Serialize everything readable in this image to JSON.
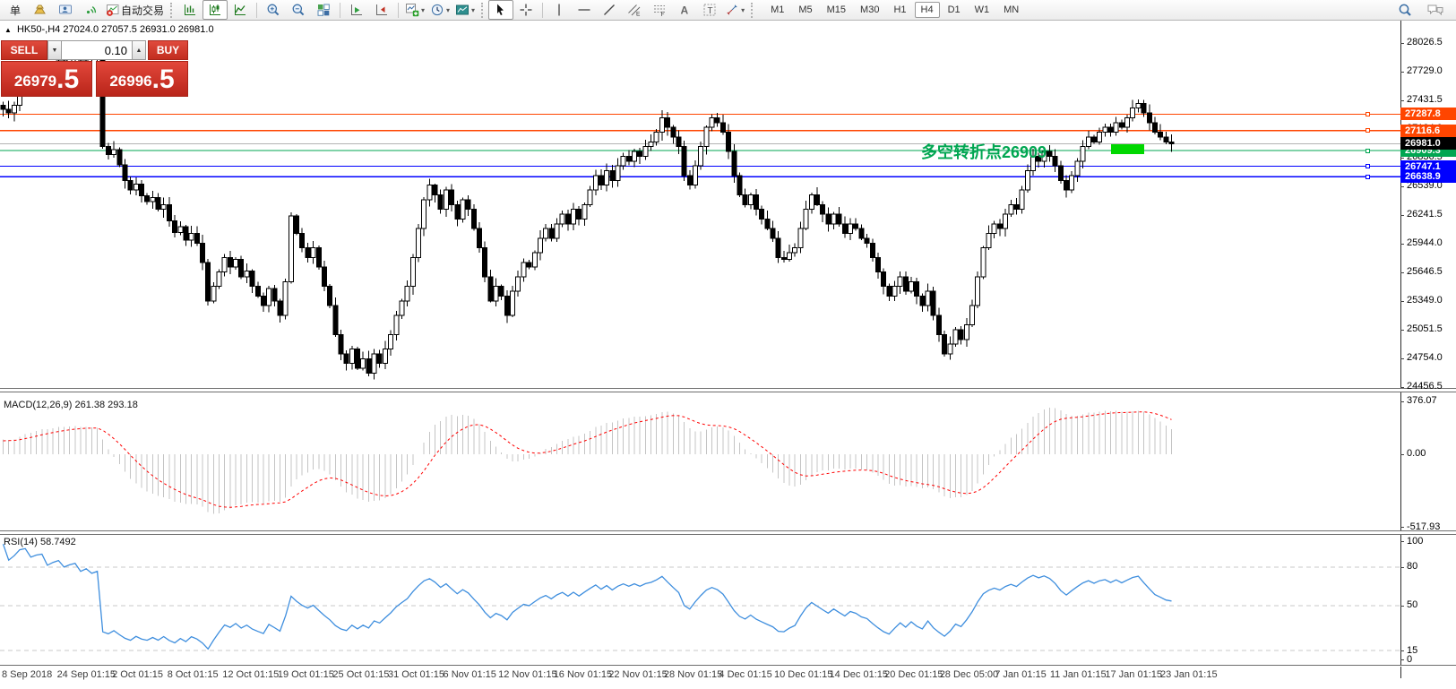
{
  "toolbar": {
    "new_order_label": "单",
    "autotrading_label": "自动交易",
    "timeframes": [
      "M1",
      "M5",
      "M15",
      "M30",
      "H1",
      "H4",
      "D1",
      "W1",
      "MN"
    ],
    "active_timeframe": "H4"
  },
  "chart_header": {
    "symbol_title": "HK50-,H4",
    "ohlc": "27024.0 27057.5 26931.0 26981.0"
  },
  "trade_panel": {
    "sell_label": "SELL",
    "buy_label": "BUY",
    "volume": "0.10",
    "sell_price_main": "26979",
    "sell_price_frac": ".5",
    "buy_price_main": "26996",
    "buy_price_frac": ".5"
  },
  "annotation": {
    "text": "多空转折点26909",
    "color": "#00a651"
  },
  "green_box": {
    "price_top": 26975,
    "price_bottom": 26872,
    "x": 1240,
    "width": 37,
    "color": "#00d800"
  },
  "current_price": {
    "value": 26981.0,
    "label": "26981.0",
    "line_color": "#b4b4b4",
    "label_bg": "#000000"
  },
  "hlines": [
    {
      "price": 27287.8,
      "label": "27287.8",
      "color": "#ff4500"
    },
    {
      "price": 27116.6,
      "label": "27116.6",
      "color": "#ff4500"
    },
    {
      "price": 26909.3,
      "label": "26909.3",
      "color": "#00a651"
    },
    {
      "price": 26747.1,
      "label": "26747.1",
      "color": "#0000ff"
    },
    {
      "price": 26638.9,
      "label": "26638.9",
      "color": "#0000ff"
    }
  ],
  "dates": [
    "8 Sep 2018",
    "24 Sep 01:15",
    "2 Oct 01:15",
    "8 Oct 01:15",
    "12 Oct 01:15",
    "19 Oct 01:15",
    "25 Oct 01:15",
    "31 Oct 01:15",
    "6 Nov 01:15",
    "12 Nov 01:15",
    "16 Nov 01:15",
    "22 Nov 01:15",
    "28 Nov 01:15",
    "4 Dec 01:15",
    "10 Dec 01:15",
    "14 Dec 01:15",
    "20 Dec 01:15",
    "28 Dec 05:00",
    "7 Jan 01:15",
    "11 Jan 01:15",
    "17 Jan 01:15",
    "23 Jan 01:15"
  ],
  "chart_data": [
    {
      "pane": "price",
      "type": "candlestick",
      "symbol": "HK50-",
      "period": "H4",
      "ylim": [
        24446,
        28268
      ],
      "ticks": [
        28026.5,
        27729.0,
        27431.5,
        27134.0,
        26836.5,
        26539.0,
        26241.5,
        25944.0,
        25646.5,
        25349.0,
        25051.5,
        24754.0,
        24456.5
      ],
      "preroll_start": 26800,
      "preroll_bars": 30,
      "closes": [
        27340,
        27300,
        27380,
        27600,
        27680,
        27640,
        27720,
        27760,
        27700,
        27780,
        27840,
        27800,
        27860,
        27900,
        27850,
        27910,
        27880,
        27920,
        26950,
        26870,
        26920,
        26760,
        26600,
        26500,
        26560,
        26440,
        26380,
        26420,
        26300,
        26350,
        26180,
        26060,
        26120,
        25980,
        26050,
        25950,
        25750,
        25350,
        25500,
        25650,
        25800,
        25700,
        25780,
        25600,
        25660,
        25500,
        25400,
        25300,
        25480,
        25350,
        25200,
        25550,
        26230,
        26050,
        25900,
        25800,
        25900,
        25700,
        25500,
        25300,
        25000,
        24800,
        24700,
        24850,
        24650,
        24750,
        24600,
        24800,
        24700,
        24850,
        25000,
        25200,
        25350,
        25500,
        25800,
        26100,
        26400,
        26550,
        26450,
        26300,
        26500,
        26350,
        26200,
        26400,
        26300,
        26100,
        25900,
        25600,
        25350,
        25500,
        25400,
        25200,
        25450,
        25600,
        25750,
        25700,
        25850,
        26000,
        26100,
        26000,
        26150,
        26250,
        26150,
        26300,
        26200,
        26350,
        26500,
        26650,
        26550,
        26700,
        26600,
        26750,
        26850,
        26800,
        26900,
        26850,
        26950,
        27000,
        27100,
        27250,
        27150,
        27050,
        26950,
        26650,
        26550,
        26750,
        26950,
        27150,
        27250,
        27200,
        27100,
        26900,
        26650,
        26450,
        26350,
        26450,
        26300,
        26200,
        26100,
        26000,
        25800,
        25780,
        25850,
        25900,
        26100,
        26300,
        26450,
        26350,
        26250,
        26150,
        26250,
        26150,
        26050,
        26150,
        26100,
        26000,
        25950,
        25800,
        25650,
        25500,
        25400,
        25500,
        25600,
        25450,
        25550,
        25400,
        25300,
        25450,
        25200,
        25000,
        24800,
        24900,
        25050,
        24950,
        25100,
        25300,
        25600,
        25900,
        26050,
        26150,
        26100,
        26250,
        26350,
        26300,
        26500,
        26700,
        26850,
        26800,
        26900,
        26850,
        26750,
        26600,
        26500,
        26650,
        26800,
        26950,
        27050,
        27000,
        27100,
        27150,
        27100,
        27200,
        27150,
        27250,
        27350,
        27400,
        27300,
        27200,
        27100,
        27050,
        27000,
        26981
      ]
    },
    {
      "pane": "macd",
      "type": "macd",
      "label": "MACD(12,26,9) 261.38 293.18",
      "params": [
        12,
        26,
        9
      ],
      "current_macd": 261.38,
      "current_signal": 293.18,
      "ylim": [
        -543,
        446
      ],
      "ticks": [
        {
          "v": 376.07,
          "label": "376.07"
        },
        {
          "v": 0,
          "label": "0.00"
        },
        {
          "v": -517.93,
          "label": "-517.93"
        }
      ],
      "hist_color": "#c4c4c4",
      "signal_color": "#ff0000"
    },
    {
      "pane": "rsi",
      "type": "line",
      "label": "RSI(14) 58.7492",
      "params": [
        14
      ],
      "current": 58.7492,
      "ylim": [
        3.9,
        105.1
      ],
      "levels": [
        80,
        50,
        15
      ],
      "ticks": [
        {
          "v": 100,
          "label": "100"
        },
        {
          "v": 80,
          "label": "80"
        },
        {
          "v": 50,
          "label": "50"
        },
        {
          "v": 15,
          "label": "15"
        },
        {
          "v": 0,
          "label": "0"
        }
      ],
      "line_color": "#3e8ede"
    }
  ]
}
